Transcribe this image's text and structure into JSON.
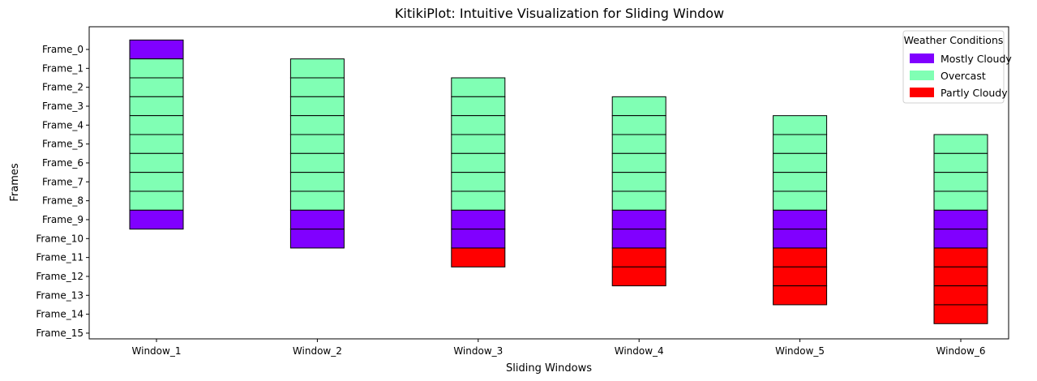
{
  "chart_data": {
    "type": "bar",
    "title": "KitikiPlot: Intuitive Visualization for Sliding Window",
    "xlabel": "Sliding Windows",
    "ylabel": "Frames",
    "x_categories": [
      "Window_1",
      "Window_2",
      "Window_3",
      "Window_4",
      "Window_5",
      "Window_6"
    ],
    "y_categories": [
      "Frame_0",
      "Frame_1",
      "Frame_2",
      "Frame_3",
      "Frame_4",
      "Frame_5",
      "Frame_6",
      "Frame_7",
      "Frame_8",
      "Frame_9",
      "Frame_10",
      "Frame_11",
      "Frame_12",
      "Frame_13",
      "Frame_14",
      "Frame_15"
    ],
    "windows": [
      {
        "window": "Window_1",
        "start_frame": 0,
        "cells": [
          "Mostly Cloudy",
          "Overcast",
          "Overcast",
          "Overcast",
          "Overcast",
          "Overcast",
          "Overcast",
          "Overcast",
          "Overcast",
          "Mostly Cloudy"
        ]
      },
      {
        "window": "Window_2",
        "start_frame": 1,
        "cells": [
          "Overcast",
          "Overcast",
          "Overcast",
          "Overcast",
          "Overcast",
          "Overcast",
          "Overcast",
          "Overcast",
          "Mostly Cloudy",
          "Mostly Cloudy"
        ]
      },
      {
        "window": "Window_3",
        "start_frame": 2,
        "cells": [
          "Overcast",
          "Overcast",
          "Overcast",
          "Overcast",
          "Overcast",
          "Overcast",
          "Overcast",
          "Mostly Cloudy",
          "Mostly Cloudy",
          "Partly Cloudy"
        ]
      },
      {
        "window": "Window_4",
        "start_frame": 3,
        "cells": [
          "Overcast",
          "Overcast",
          "Overcast",
          "Overcast",
          "Overcast",
          "Overcast",
          "Mostly Cloudy",
          "Mostly Cloudy",
          "Partly Cloudy",
          "Partly Cloudy"
        ]
      },
      {
        "window": "Window_5",
        "start_frame": 4,
        "cells": [
          "Overcast",
          "Overcast",
          "Overcast",
          "Overcast",
          "Overcast",
          "Mostly Cloudy",
          "Mostly Cloudy",
          "Partly Cloudy",
          "Partly Cloudy",
          "Partly Cloudy"
        ]
      },
      {
        "window": "Window_6",
        "start_frame": 5,
        "cells": [
          "Overcast",
          "Overcast",
          "Overcast",
          "Overcast",
          "Mostly Cloudy",
          "Mostly Cloudy",
          "Partly Cloudy",
          "Partly Cloudy",
          "Partly Cloudy",
          "Partly Cloudy"
        ]
      }
    ],
    "legend": {
      "title": "Weather Conditions",
      "position": "top-right",
      "entries": [
        {
          "label": "Mostly Cloudy",
          "color": "#8000ff"
        },
        {
          "label": "Overcast",
          "color": "#80ffb4"
        },
        {
          "label": "Partly Cloudy",
          "color": "#ff0000"
        }
      ]
    },
    "grid": false
  }
}
